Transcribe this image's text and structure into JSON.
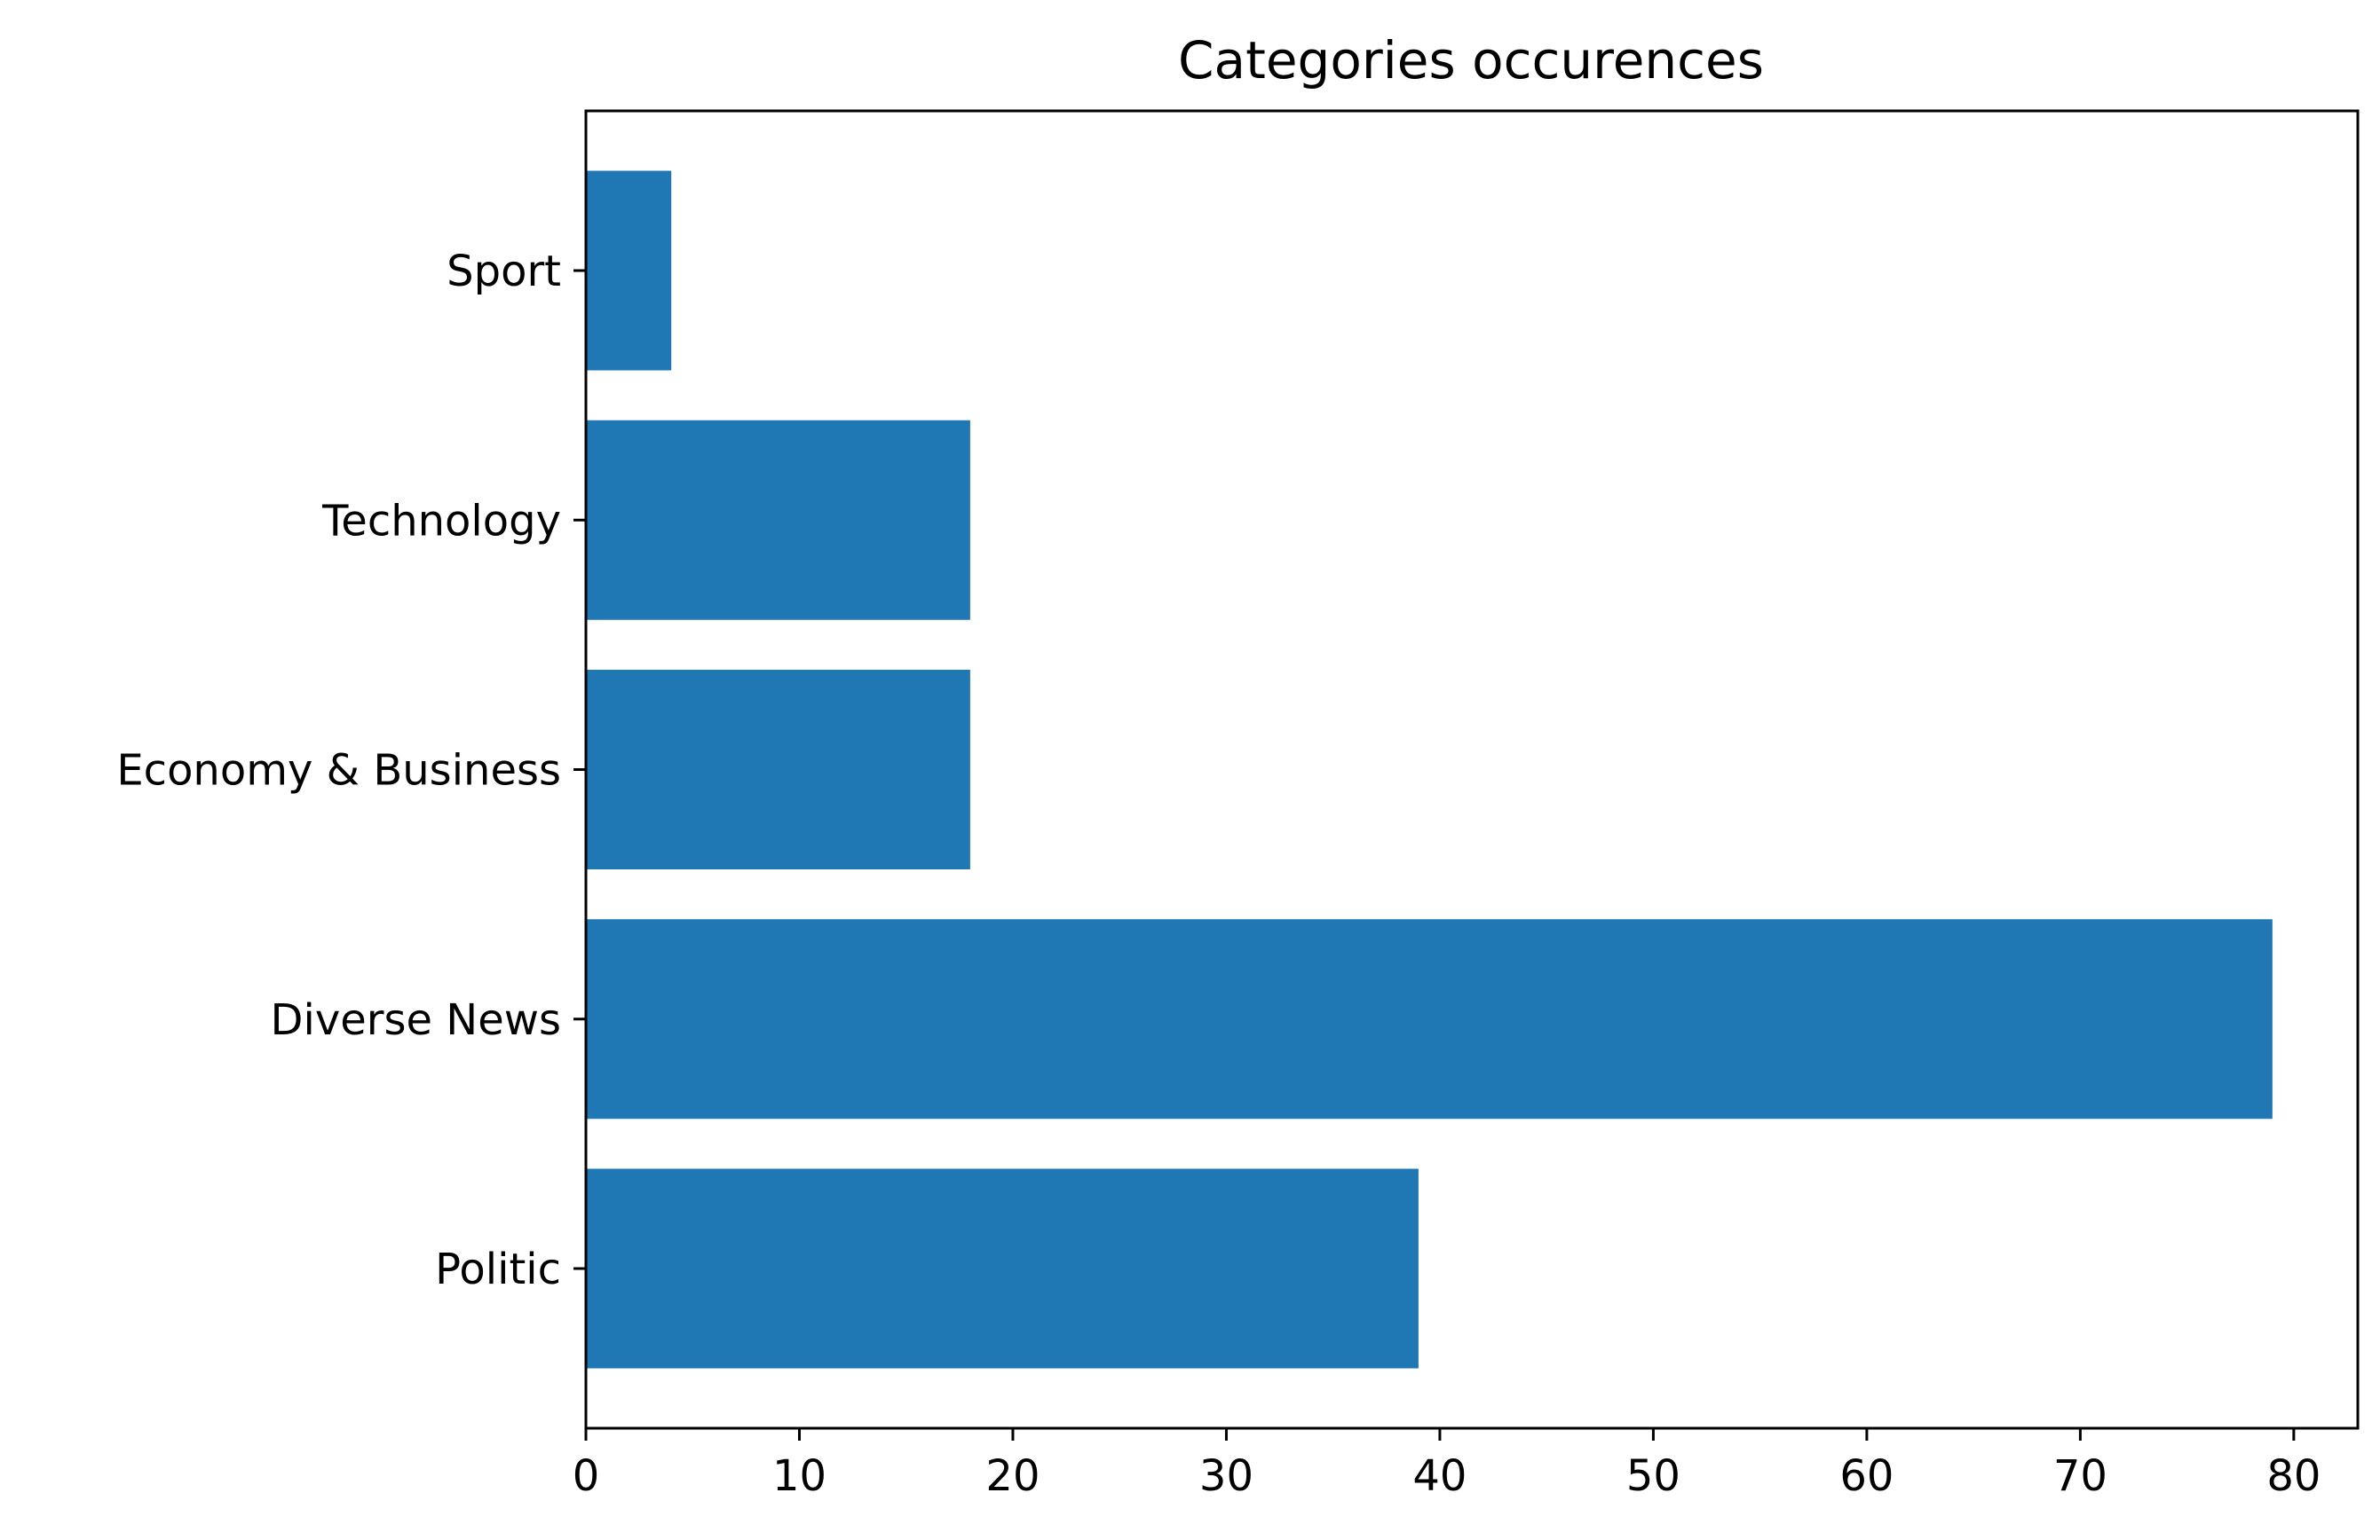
{
  "chart_data": {
    "type": "bar",
    "orientation": "horizontal",
    "title": "Categories occurences",
    "xlabel": "",
    "ylabel": "",
    "categories": [
      "Politic",
      "Diverse News",
      "Economy & Business",
      "Technology",
      "Sport"
    ],
    "values": [
      39,
      79,
      18,
      18,
      4
    ],
    "xlim": [
      0,
      83
    ],
    "xticks": [
      0,
      10,
      20,
      30,
      40,
      50,
      60,
      70,
      80
    ],
    "bar_color": "#1f77b4",
    "grid": false,
    "legend": "none"
  }
}
